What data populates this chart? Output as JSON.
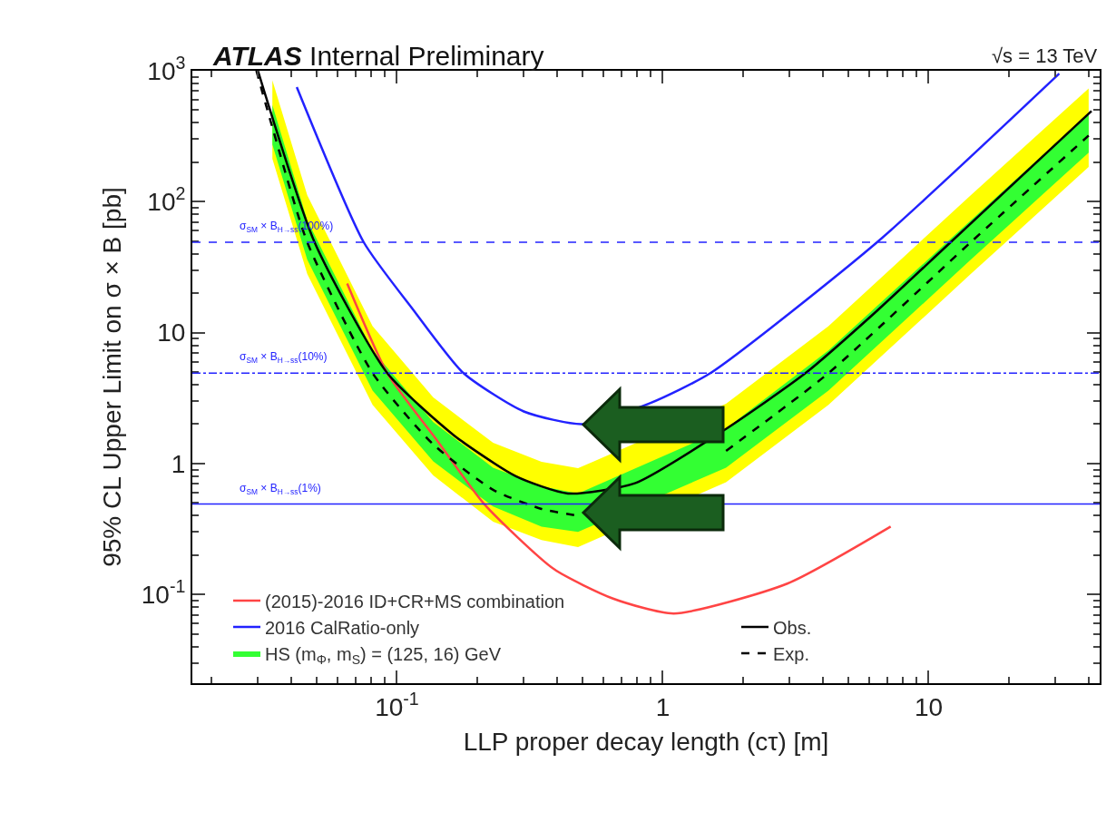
{
  "chart_data": {
    "type": "line",
    "title": "ATLAS Internal Preliminary",
    "xlabel": "LLP proper decay length (cτ) [m]",
    "ylabel": "95% CL Upper Limit on σ × B [pb]",
    "annotations": [
      "√s = 13 TeV"
    ],
    "log": "xy",
    "xlim": [
      0.017,
      44
    ],
    "ylim": [
      0.021,
      1000
    ],
    "xticks": [
      {
        "value": 0.1,
        "label": "10$^{-1}$"
      },
      1,
      10
    ],
    "yticks": [
      {
        "value": 0.1,
        "label": "10$^{-1}$"
      },
      1,
      10,
      {
        "value": 100,
        "label": "10$^{2}$"
      },
      {
        "value": 1000,
        "label": "10$^{3}$"
      }
    ],
    "legend": "bottom",
    "ref_lines": [
      {
        "axis": "y",
        "value": 49,
        "label": "σ$_{SM}$ × B$_{H→ss}$(100%)",
        "color": "#2222ff",
        "line_style": "dashed"
      },
      {
        "axis": "y",
        "value": 4.9,
        "label": "σ$_{SM}$ × B$_{H→ss}$(10%)",
        "color": "#2222ff",
        "line_style": "dashdot"
      },
      {
        "axis": "y",
        "value": 0.49,
        "label": "σ$_{SM}$ × B$_{H→ss}$(1%)",
        "color": "#2222ff",
        "line_style": "solid"
      }
    ],
    "series": [
      {
        "name": "(2015)-2016 ID+CR+MS combination",
        "color": "#ff4444",
        "x": [
          0.065,
          0.092,
          0.14,
          0.213,
          0.39,
          0.65,
          1.1,
          2.94,
          7.2
        ],
        "values": [
          23.7,
          4.9,
          1.55,
          0.49,
          0.156,
          0.093,
          0.0715,
          0.121,
          0.33
        ]
      },
      {
        "name": "2016 CalRatio-only",
        "color": "#2222ff",
        "x": [
          0.042,
          0.075,
          0.115,
          0.178,
          0.3,
          0.5,
          0.9,
          1.51,
          6.4,
          31
        ],
        "values": [
          750,
          49,
          15,
          4.9,
          2.5,
          2.0,
          2.9,
          4.9,
          49,
          950
        ]
      },
      {
        "name": "HS (m$_{Φ}$, m$_{S}$) = (125, 16) GeV",
        "type": "line",
        "color": "#33ff33",
        "x": [
          0.034,
          0.046,
          0.081,
          0.137,
          0.23,
          0.35,
          0.48,
          1.73,
          4.2,
          14.4,
          40
        ],
        "values": [
          null,
          null,
          null,
          null,
          null,
          null,
          null,
          null,
          null,
          null,
          null
        ],
        "lower": [
          274,
          36,
          3.6,
          1.04,
          0.47,
          0.33,
          0.3,
          0.93,
          3.6,
          36,
          237
        ],
        "upper": [
          548,
          72,
          7.3,
          2.07,
          0.93,
          0.67,
          0.59,
          1.85,
          7.3,
          72,
          474
        ]
      },
      {
        "type": "line",
        "color": "#ffff00",
        "x": [
          0.034,
          0.046,
          0.081,
          0.137,
          0.23,
          0.35,
          0.48,
          1.73,
          4.2,
          14.4,
          40
        ],
        "values": [
          null,
          null,
          null,
          null,
          null,
          null,
          null,
          null,
          null,
          null,
          null
        ],
        "lower": [
          213,
          28,
          2.8,
          0.81,
          0.36,
          0.26,
          0.23,
          0.72,
          2.8,
          28,
          184
        ],
        "upper": [
          847,
          112,
          11.2,
          3.2,
          1.44,
          1.03,
          0.92,
          2.86,
          11.2,
          112,
          733
        ]
      },
      {
        "name": "Obs.",
        "color": "#000000",
        "line_style": "solid",
        "x": [
          0.03,
          0.049,
          0.092,
          0.164,
          0.28,
          0.44,
          0.79,
          1.73,
          3.44,
          6.4,
          12.1,
          41
        ],
        "values": [
          1000,
          49,
          4.9,
          1.64,
          0.8,
          0.59,
          0.71,
          1.84,
          4.9,
          14.7,
          49,
          492
        ]
      },
      {
        "name": "Exp.",
        "color": "#000000",
        "line_style": "dashed",
        "x": [
          0.0296,
          0.034,
          0.046,
          0.081,
          0.137,
          0.23,
          0.35,
          0.48,
          0.65,
          0.92,
          1.73,
          4.2,
          14.4,
          40
        ],
        "values": [
          1000,
          370,
          49,
          4.9,
          1.4,
          0.63,
          0.45,
          0.4,
          null,
          null,
          1.25,
          4.9,
          49,
          320
        ]
      }
    ]
  }
}
